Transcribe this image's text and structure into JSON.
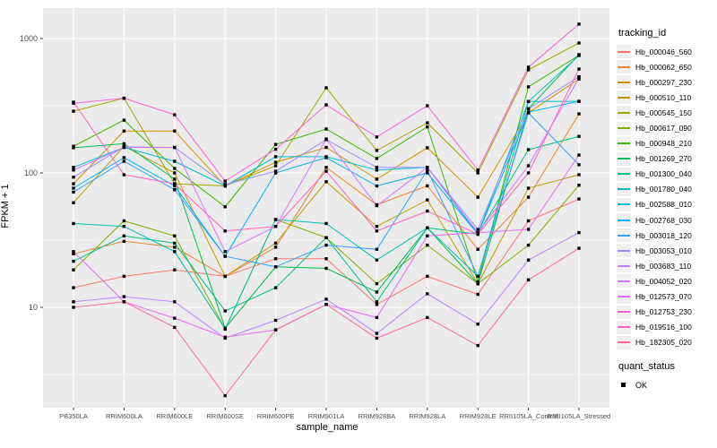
{
  "figure": {
    "bg": "#FFFFFF",
    "panel_bg": "#EBEBEB",
    "grid_color": "#FFFFFF",
    "tick_text_color": "#4D4D4D",
    "tick_mark_color": "#333333",
    "point_color": "#000000"
  },
  "axes": {
    "x": {
      "title": "sample_name",
      "categories": [
        "PB350LA",
        "RRIM600LA",
        "RRIM600LE",
        "RRIM600SE",
        "RRIM600PE",
        "RRIM901LA",
        "RRIM928BA",
        "RRIM928LA",
        "RRIM928LE",
        "RRII105LA_Control",
        "RRII105LA_Stressed"
      ]
    },
    "y": {
      "title": "FPKM + 1",
      "scale": "log10",
      "tick_labels": [
        "10",
        "100",
        "1000"
      ],
      "tick_values": [
        10,
        100,
        1000
      ],
      "minor_values": [
        3.162,
        31.62,
        316.2
      ]
    }
  },
  "legend": {
    "title": "tracking_id"
  },
  "legend2": {
    "title": "quant_status",
    "items": [
      {
        "label": "OK",
        "shape": "filled-square"
      }
    ]
  },
  "chart_data": {
    "type": "line",
    "x_type": "categorical",
    "y_scale": "log10",
    "ylim": [
      2,
      1350
    ],
    "grid": true,
    "legend_position": "right",
    "title": "",
    "xlabel": "sample_name",
    "ylabel": "FPKM + 1",
    "point_marker": "filled-square-black",
    "categories": [
      "PB350LA",
      "RRIM600LA",
      "RRIM600LE",
      "RRIM600SE",
      "RRIM600PE",
      "RRIM901LA",
      "RRIM928BA",
      "RRIM928LA",
      "RRIM928LE",
      "RRII105LA_Control",
      "RRII105LA_Stressed"
    ],
    "series": [
      {
        "name": "Hb_000046_560",
        "color": "#F8766D",
        "values": [
          14,
          17,
          19,
          17,
          23,
          23,
          10.5,
          17,
          12.5,
          44,
          64
        ]
      },
      {
        "name": "Hb_000062_650",
        "color": "#EA8331",
        "values": [
          25,
          31,
          28,
          17,
          28,
          110,
          58,
          80,
          27,
          66,
          275
        ]
      },
      {
        "name": "Hb_000297_230",
        "color": "#D89000",
        "values": [
          83,
          205,
          205,
          80,
          120,
          155,
          90,
          154,
          66,
          280,
          500
        ]
      },
      {
        "name": "Hb_000510_110",
        "color": "#C09B00",
        "values": [
          60,
          158,
          100,
          17,
          30,
          86,
          40,
          63,
          15,
          77,
          97
        ]
      },
      {
        "name": "Hb_000545_150",
        "color": "#A3A500",
        "values": [
          288,
          360,
          83,
          80,
          113,
          430,
          147,
          236,
          100,
          585,
          926
        ]
      },
      {
        "name": "Hb_000617_090",
        "color": "#7CAE00",
        "values": [
          19,
          44,
          34,
          6.9,
          45,
          33,
          15,
          29,
          15,
          29,
          81
        ]
      },
      {
        "name": "Hb_000948_210",
        "color": "#39B600",
        "values": [
          158,
          247,
          108,
          56,
          163,
          212,
          128,
          220,
          15.5,
          437,
          750
        ]
      },
      {
        "name": "Hb_001269_270",
        "color": "#00BB4E",
        "values": [
          154,
          165,
          90,
          7,
          20,
          19.5,
          13,
          39,
          15,
          300,
          760
        ]
      },
      {
        "name": "Hb_001300_040",
        "color": "#00C087",
        "values": [
          22,
          34,
          30,
          9.4,
          14,
          33,
          11,
          39,
          35,
          149,
          187
        ]
      },
      {
        "name": "Hb_001780_040",
        "color": "#00C0AF",
        "values": [
          42,
          40,
          26,
          6.9,
          45,
          42,
          22.5,
          39,
          17,
          340,
          747
        ]
      },
      {
        "name": "Hb_002588_010",
        "color": "#00BCD8",
        "values": [
          110,
          155,
          122,
          80,
          132,
          132,
          105,
          110,
          35,
          340,
          341
        ]
      },
      {
        "name": "Hb_002768_030",
        "color": "#00B0F6",
        "values": [
          77,
          130,
          80,
          24,
          100,
          130,
          80,
          100,
          35,
          284,
          341
        ]
      },
      {
        "name": "Hb_003018_120",
        "color": "#35A2FF",
        "values": [
          72,
          122,
          75,
          24,
          20,
          29,
          27,
          105,
          17,
          280,
          115
        ]
      },
      {
        "name": "Hb_003053_010",
        "color": "#9590FF",
        "values": [
          93,
          156,
          155,
          82,
          103,
          177,
          110,
          110,
          38,
          300,
          520
        ]
      },
      {
        "name": "Hb_003683_110",
        "color": "#B983FF",
        "values": [
          11,
          12,
          11,
          5.9,
          8,
          11.5,
          6.4,
          12.6,
          7.5,
          22.5,
          36
        ]
      },
      {
        "name": "Hb_004052_020",
        "color": "#D376FF",
        "values": [
          105,
          155,
          155,
          26,
          40,
          179,
          57,
          110,
          36,
          113,
          509
        ]
      },
      {
        "name": "Hb_012573_070",
        "color": "#E76BF3",
        "values": [
          26,
          11,
          8.3,
          6,
          6.8,
          10.5,
          8.4,
          34,
          36,
          38,
          136
        ]
      },
      {
        "name": "Hb_012753_230",
        "color": "#FA62DB",
        "values": [
          330,
          360,
          271,
          87,
          150,
          321,
          185,
          316,
          105,
          612,
          1280
        ]
      },
      {
        "name": "Hb_019516_100",
        "color": "#FF62BC",
        "values": [
          336,
          97,
          83,
          37,
          40,
          103,
          37,
          52,
          35,
          100,
          593
        ]
      },
      {
        "name": "Hb_182305_020",
        "color": "#FF6A98",
        "values": [
          10,
          11,
          7.1,
          2.2,
          6.8,
          10.5,
          5.9,
          8.4,
          5.2,
          16,
          27.5
        ]
      }
    ]
  }
}
